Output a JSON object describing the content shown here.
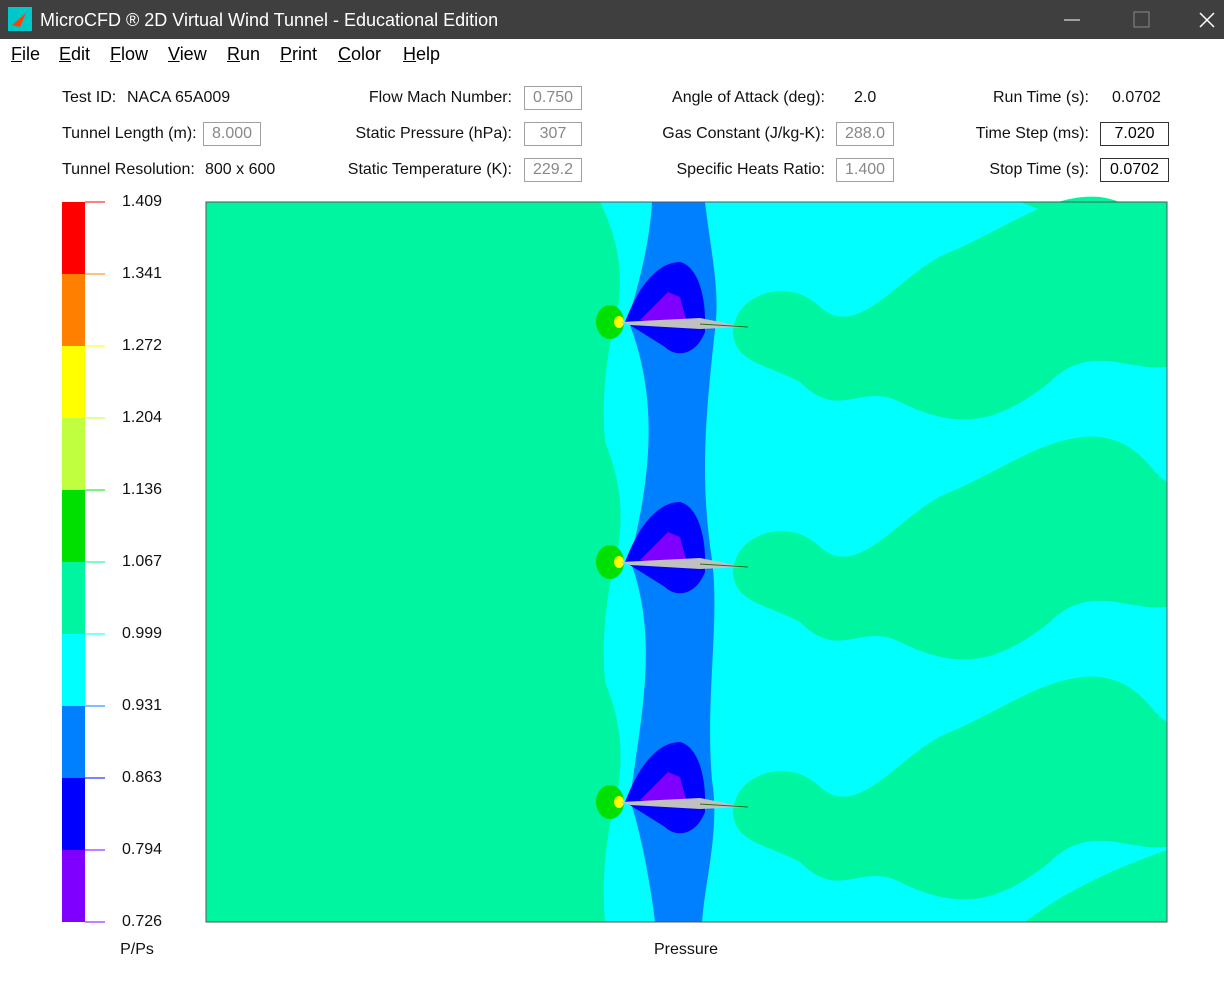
{
  "window": {
    "title": "MicroCFD ® 2D Virtual Wind Tunnel - Educational Edition"
  },
  "menu": [
    "File",
    "Edit",
    "Flow",
    "View",
    "Run",
    "Print",
    "Color",
    "Help"
  ],
  "fields": {
    "test_id": {
      "label": "Test ID:",
      "value": "NACA 65A009"
    },
    "tunnel_length": {
      "label": "Tunnel Length (m):",
      "value": "8.000"
    },
    "tunnel_resolution": {
      "label": "Tunnel Resolution:",
      "value": "800 x 600"
    },
    "mach": {
      "label": "Flow Mach Number:",
      "value": "0.750"
    },
    "static_pressure": {
      "label": "Static Pressure (hPa):",
      "value": "307"
    },
    "static_temperature": {
      "label": "Static Temperature (K):",
      "value": "229.2"
    },
    "angle_of_attack": {
      "label": "Angle of Attack (deg):",
      "value": "2.0"
    },
    "gas_constant": {
      "label": "Gas Constant (J/kg-K):",
      "value": "288.0"
    },
    "heats_ratio": {
      "label": "Specific Heats Ratio:",
      "value": "1.400"
    },
    "run_time": {
      "label": "Run Time (s):",
      "value": "0.0702"
    },
    "time_step": {
      "label": "Time Step (ms):",
      "value": "7.020"
    },
    "stop_time": {
      "label": "Stop Time (s):",
      "value": "0.0702"
    }
  },
  "colorbar": {
    "ticks": [
      "1.409",
      "1.341",
      "1.272",
      "1.204",
      "1.136",
      "1.067",
      "0.999",
      "0.931",
      "0.863",
      "0.794",
      "0.726"
    ],
    "colors": [
      "#ff0000",
      "#ff8000",
      "#ffff00",
      "#c0ff40",
      "#00e000",
      "#00f5a0",
      "#00ffff",
      "#0080ff",
      "#0000ff",
      "#8000ff"
    ],
    "label": "P/Ps"
  },
  "plot": {
    "label": "Pressure"
  }
}
